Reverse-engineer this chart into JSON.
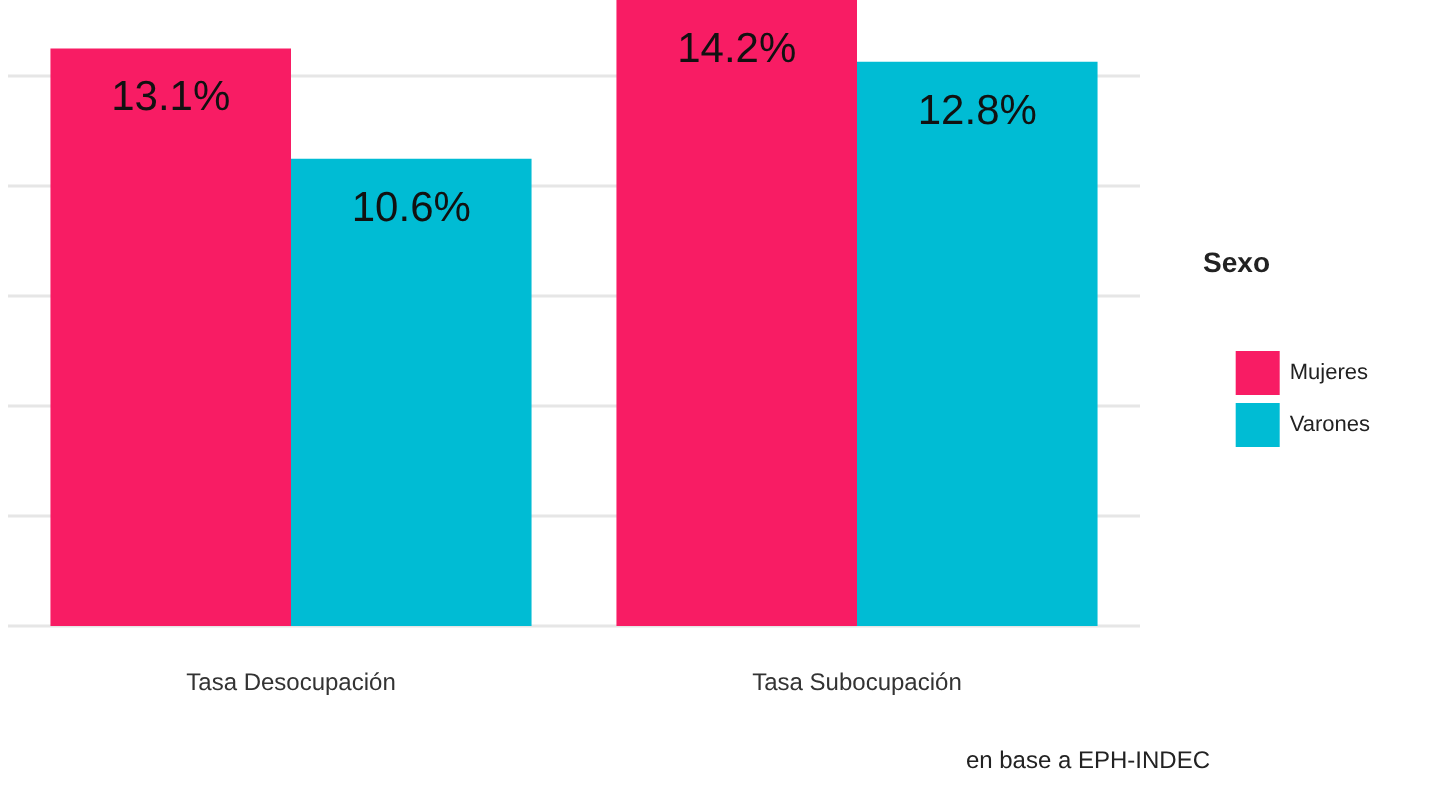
{
  "chart_data": {
    "type": "bar",
    "categories": [
      "Tasa Desocupación",
      "Tasa Subocupación"
    ],
    "series": [
      {
        "name": "Mujeres",
        "color": "#f81c64",
        "values": [
          13.1,
          14.2
        ],
        "value_labels": [
          "13.1%",
          "14.2%"
        ]
      },
      {
        "name": "Varones",
        "color": "#00bcd4",
        "values": [
          10.6,
          12.8
        ],
        "value_labels": [
          "10.6%",
          "12.8%"
        ]
      }
    ],
    "legend_title": "Sexo",
    "legend": "right",
    "grid": "y",
    "tick_labels": "x",
    "ylim": [
      0,
      14.2
    ],
    "yticks": [
      {
        "value": 0,
        "label": null
      },
      {
        "value": 2.5,
        "label": null
      },
      {
        "value": 5,
        "label": null
      },
      {
        "value": 7.5,
        "label": null
      },
      {
        "value": 10,
        "label": null
      },
      {
        "value": 12.5,
        "label": null
      }
    ],
    "annotations": [
      "en base a EPH-INDEC"
    ]
  }
}
